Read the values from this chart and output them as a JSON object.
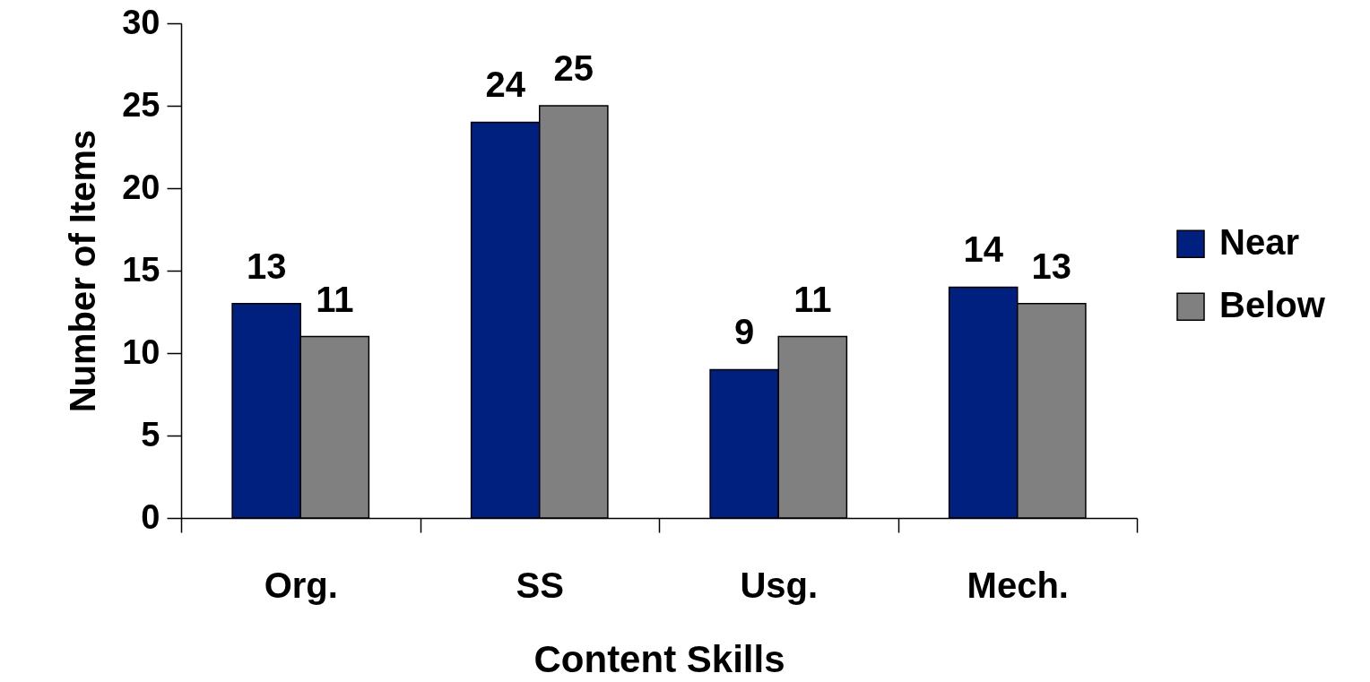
{
  "chart_data": {
    "type": "bar",
    "xlabel": "Content Skills",
    "ylabel": "Number of Items",
    "categories": [
      "Org.",
      "SS",
      "Usg.",
      "Mech."
    ],
    "series": [
      {
        "name": "Near",
        "color": "#002080",
        "values": [
          13,
          24,
          9,
          14
        ]
      },
      {
        "name": "Below",
        "color": "#808080",
        "values": [
          11,
          25,
          11,
          13
        ]
      }
    ],
    "ylim": [
      0,
      30
    ],
    "yticks": [
      0,
      5,
      10,
      15,
      20,
      25,
      30
    ],
    "data_labels": true,
    "legend": "right"
  }
}
